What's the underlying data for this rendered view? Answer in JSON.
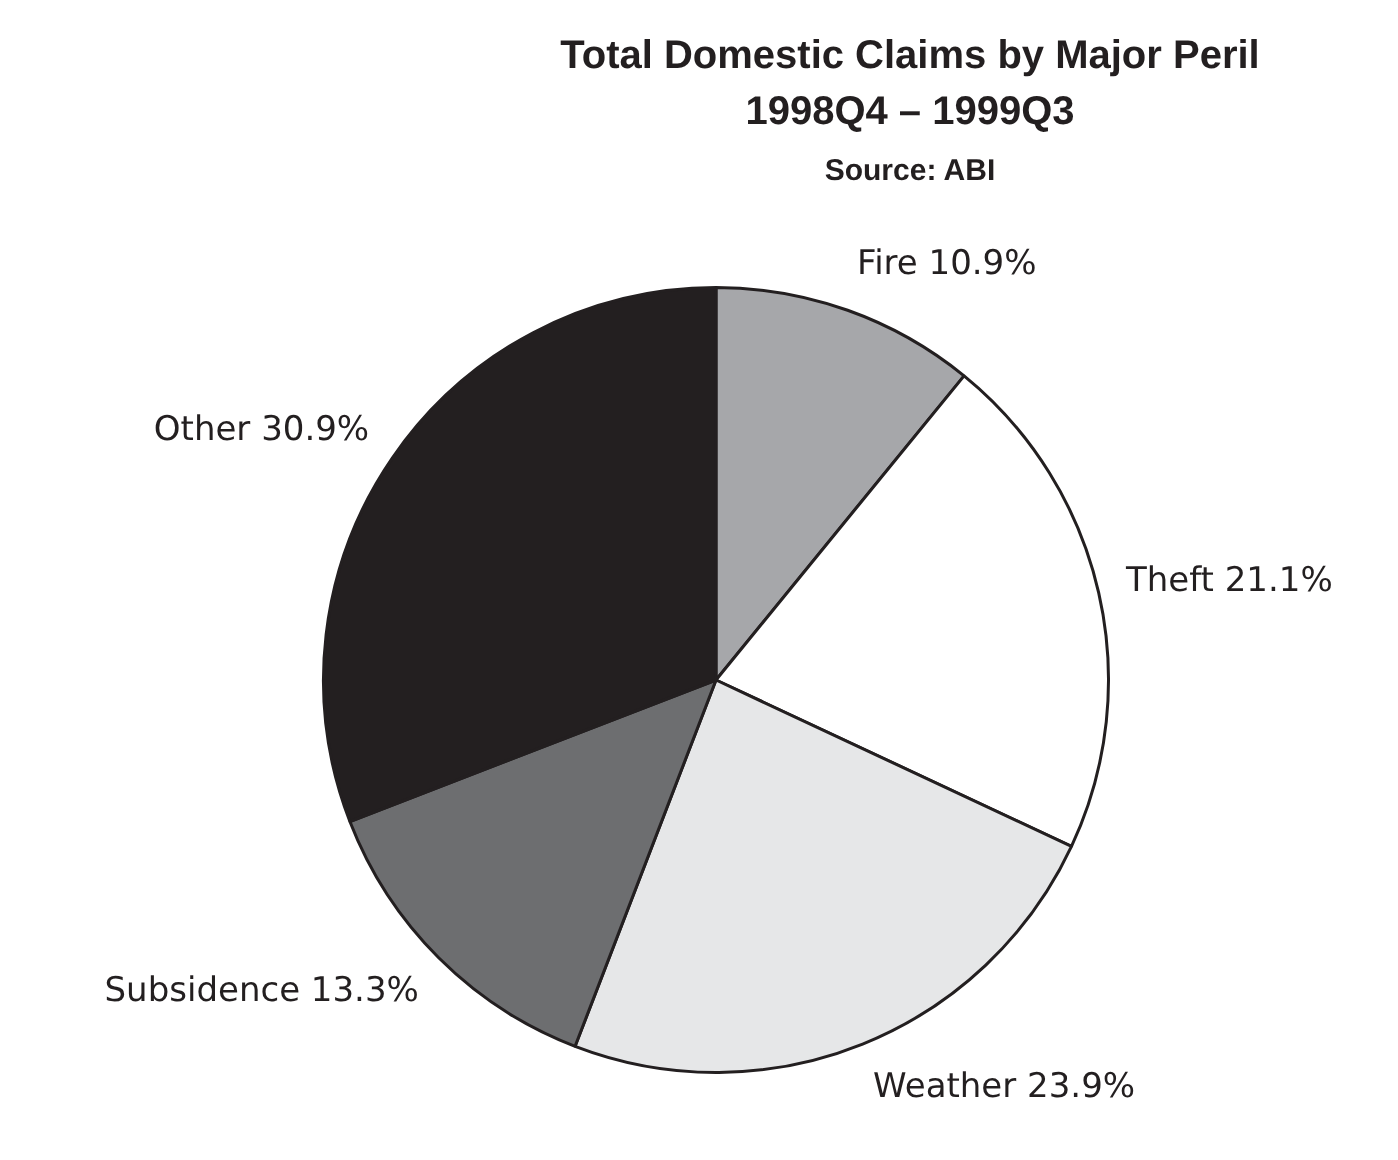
{
  "chart_data": {
    "type": "pie",
    "title": "Total Domestic Claims by Major Peril\n1998Q4 – 1999Q3",
    "subtitle": "Source: ABI",
    "categories": [
      "Fire",
      "Theft",
      "Weather",
      "Subsidence",
      "Other"
    ],
    "values": [
      10.9,
      21.1,
      23.9,
      13.3,
      30.9
    ],
    "value_labels": [
      "10.9%",
      "21.1%",
      "23.9%",
      "13.3%",
      "30.9%"
    ],
    "colors": [
      "#a6a7aa",
      "#ffffff",
      "#e6e7e8",
      "#6d6e70",
      "#231f20"
    ],
    "legend": false
  }
}
